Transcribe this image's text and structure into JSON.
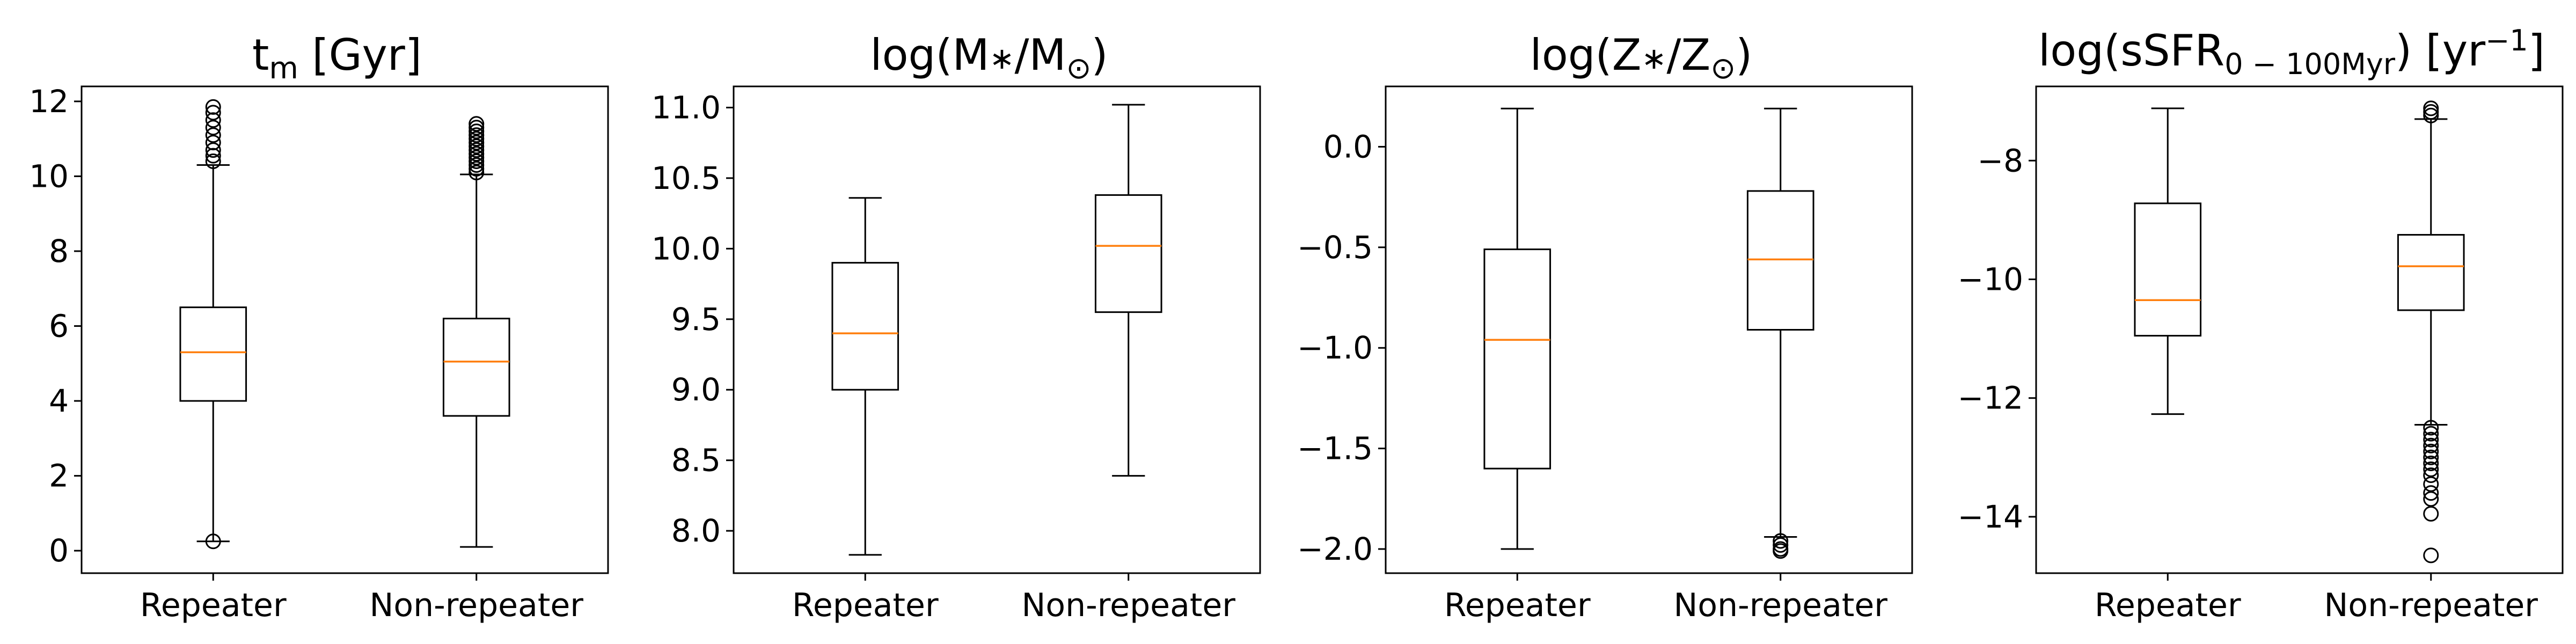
{
  "colors": {
    "median": "#ff7f0e",
    "box": "#000000",
    "axes": "#000000",
    "background": "#ffffff"
  },
  "chart_data": [
    {
      "type": "boxplot",
      "title": {
        "main": "t",
        "sub": "m",
        "rest": " [Gyr]"
      },
      "categories": [
        "Repeater",
        "Non-repeater"
      ],
      "ylim": [
        -0.6,
        12.4
      ],
      "yticks": [
        0,
        2,
        4,
        6,
        8,
        10,
        12
      ],
      "ytick_labels": [
        "0",
        "2",
        "4",
        "6",
        "8",
        "10",
        "12"
      ],
      "boxes": [
        {
          "name": "Repeater",
          "whislo": 0.25,
          "q1": 4.0,
          "med": 5.3,
          "q3": 6.5,
          "whishi": 10.3,
          "fliers": [
            0.25,
            10.4,
            10.55,
            10.7,
            10.9,
            11.1,
            11.3,
            11.5,
            11.7,
            11.85
          ]
        },
        {
          "name": "Non-repeater",
          "whislo": 0.1,
          "q1": 3.6,
          "med": 5.05,
          "q3": 6.2,
          "whishi": 10.05,
          "fliers": [
            10.1,
            10.2,
            10.3,
            10.4,
            10.5,
            10.6,
            10.7,
            10.8,
            10.9,
            11.0,
            11.1,
            11.2,
            11.3,
            11.4
          ]
        }
      ]
    },
    {
      "type": "boxplot",
      "title": {
        "pre": "log(M",
        "star": "∗",
        "slash": "/M",
        "sun": "⊙",
        "post": ")"
      },
      "categories": [
        "Repeater",
        "Non-repeater"
      ],
      "ylim": [
        7.7,
        11.15
      ],
      "yticks": [
        8.0,
        8.5,
        9.0,
        9.5,
        10.0,
        10.5,
        11.0
      ],
      "ytick_labels": [
        "8.0",
        "8.5",
        "9.0",
        "9.5",
        "10.0",
        "10.5",
        "11.0"
      ],
      "boxes": [
        {
          "name": "Repeater",
          "whislo": 7.83,
          "q1": 9.0,
          "med": 9.4,
          "q3": 9.9,
          "whishi": 10.36,
          "fliers": []
        },
        {
          "name": "Non-repeater",
          "whislo": 8.39,
          "q1": 9.55,
          "med": 10.02,
          "q3": 10.38,
          "whishi": 11.02,
          "fliers": []
        }
      ]
    },
    {
      "type": "boxplot",
      "title": {
        "pre": "log(Z",
        "star": "∗",
        "slash": "/Z",
        "sun": "⊙",
        "post": ")"
      },
      "categories": [
        "Repeater",
        "Non-repeater"
      ],
      "ylim": [
        -2.12,
        0.3
      ],
      "yticks": [
        0.0,
        -0.5,
        -1.0,
        -1.5,
        -2.0
      ],
      "ytick_labels": [
        "0.0",
        "−0.5",
        "−1.0",
        "−1.5",
        "−2.0"
      ],
      "boxes": [
        {
          "name": "Repeater",
          "whislo": -2.0,
          "q1": -1.6,
          "med": -0.96,
          "q3": -0.51,
          "whishi": 0.19,
          "fliers": []
        },
        {
          "name": "Non-repeater",
          "whislo": -1.94,
          "q1": -0.91,
          "med": -0.56,
          "q3": -0.22,
          "whishi": 0.19,
          "fliers": [
            -1.96,
            -1.98,
            -2.0,
            -2.01
          ]
        }
      ]
    },
    {
      "type": "boxplot",
      "title": {
        "pre": "log(sSFR",
        "sub": "0 − 100Myr",
        "mid": ") [yr",
        "sup": "−1",
        "post": "]"
      },
      "categories": [
        "Repeater",
        "Non-repeater"
      ],
      "ylim": [
        -14.95,
        -6.75
      ],
      "yticks": [
        -8,
        -10,
        -12,
        -14
      ],
      "ytick_labels": [
        "−8",
        "−10",
        "−12",
        "−14"
      ],
      "boxes": [
        {
          "name": "Repeater",
          "whislo": -12.27,
          "q1": -10.95,
          "med": -10.35,
          "q3": -8.72,
          "whishi": -7.12,
          "fliers": []
        },
        {
          "name": "Non-repeater",
          "whislo": -12.45,
          "q1": -10.52,
          "med": -9.78,
          "q3": -9.25,
          "whishi": -7.3,
          "fliers": [
            -7.12,
            -7.18,
            -7.24,
            -12.5,
            -12.6,
            -12.7,
            -12.8,
            -12.9,
            -13.0,
            -13.1,
            -13.2,
            -13.3,
            -13.45,
            -13.6,
            -13.7,
            -13.95,
            -14.65
          ]
        }
      ]
    }
  ]
}
